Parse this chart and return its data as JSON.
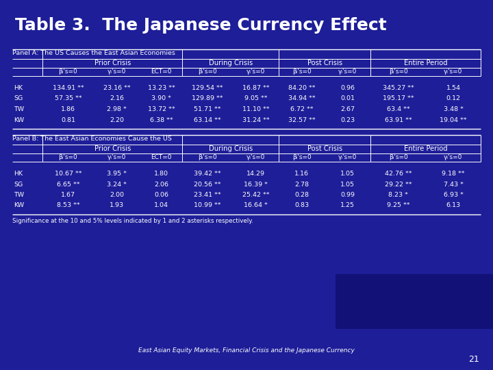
{
  "title": "Table 3.  The Japanese Currency Effect",
  "bg_color": "#1e1e99",
  "text_color": "#ffffff",
  "subtitle": "East Asian Equity Markets, Financial Crisis and the Japanese Currency",
  "page_num": "21",
  "footnote": "Significance at the 10 and 5% levels indicated by 1 and 2 asterisks respectively.",
  "panel_a_label": "Panel A: The US Causes the East Asian Economies",
  "panel_b_label": "Panel B: The East Asian Economies Cause the US",
  "col_groups": [
    "Prior Crisis",
    "During Crisis",
    "Post Crisis",
    "Entire Period"
  ],
  "sub_headers": [
    "βᵢ's=0",
    "γᵢ's=0",
    "ECT=0",
    "βᵢ's=0",
    "γᵢ's=0",
    "βᵢ's=0",
    "γᵢ's=0",
    "βᵢ's=0",
    "γᵢ's=0"
  ],
  "rows": [
    "HK",
    "SG",
    "TW",
    "KW"
  ],
  "panel_a_data": [
    [
      "134.91 **",
      "23.16 **",
      "13.23 **",
      "129.54 **",
      "16.87 **",
      "84.20 **",
      "0.96",
      "345.27 **",
      "1.54"
    ],
    [
      "57.35 **",
      "2.16",
      "3.90 *",
      "129.89 **",
      "9.05 **",
      "34.94 **",
      "0.01",
      "195.17 **",
      "0.12"
    ],
    [
      "1.86",
      "2.98 *",
      "13.72 **",
      "51.71 **",
      "11.10 **",
      "6.72 **",
      "2.67",
      "63.4 **",
      "3.48 *"
    ],
    [
      "0.81",
      "2.20",
      "6.38 **",
      "63.14 **",
      "31.24 **",
      "32.57 **",
      "0.23",
      "63.91 **",
      "19.04 **"
    ]
  ],
  "panel_b_data": [
    [
      "10.67 **",
      "3.95 *",
      "1.80",
      "39.42 **",
      "14.29",
      "1.16",
      "1.05",
      "42.76 **",
      "9.18 **"
    ],
    [
      "6.65 **",
      "3.24 *",
      "2.06",
      "20.56 **",
      "16.39 *",
      "2.78",
      "1.05",
      "29.22 **",
      "7.43 *"
    ],
    [
      "1.67",
      "2.00",
      "0.06",
      "23.41 **",
      "25.42 **",
      "0.28",
      "0.99",
      "8.23 *",
      "6.93 *"
    ],
    [
      "8.53 **",
      "1.93",
      "1.04",
      "10.99 **",
      "16.64 *",
      "0.83",
      "1.25",
      "9.25 **",
      "6.13"
    ]
  ],
  "dark_box_color": "#111177"
}
